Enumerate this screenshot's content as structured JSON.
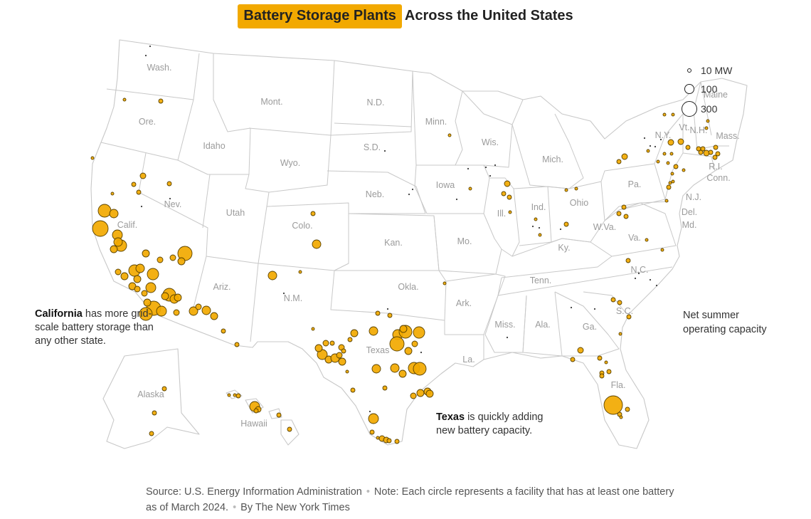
{
  "title": {
    "highlight": "Battery Storage Plants",
    "rest": "Across the United States"
  },
  "colors": {
    "plant_fill": "#f2a900",
    "plant_stroke": "#5a4200",
    "border": "#c8c8c8",
    "label": "#9b9b9b"
  },
  "states": {
    "wa": "Wash.",
    "or": "Ore.",
    "ca": "Calif.",
    "nv": "Nev.",
    "id": "Idaho",
    "mt": "Mont.",
    "wy": "Wyo.",
    "ut": "Utah",
    "az": "Ariz.",
    "co": "Colo.",
    "nm": "N.M.",
    "nd": "N.D.",
    "sd": "S.D.",
    "ne": "Neb.",
    "ks": "Kan.",
    "ok": "Okla.",
    "tx": "Texas",
    "mn": "Minn.",
    "ia": "Iowa",
    "mo": "Mo.",
    "ar": "Ark.",
    "la": "La.",
    "wi": "Wis.",
    "il": "Ill.",
    "mi": "Mich.",
    "in": "Ind.",
    "oh": "Ohio",
    "ky": "Ky.",
    "tn": "Tenn.",
    "ms": "Miss.",
    "al": "Ala.",
    "ga": "Ga.",
    "fl": "Fla.",
    "sc": "S.C.",
    "nc": "N.C.",
    "va": "Va.",
    "wv": "W.Va.",
    "pa": "Pa.",
    "ny": "N.Y.",
    "vt": "Vt.",
    "nh": "N.H.",
    "me": "Maine",
    "ma": "Mass.",
    "ri": "R.I.",
    "ct": "Conn.",
    "nj": "N.J.",
    "de": "Del.",
    "md": "Md.",
    "ak": "Alaska",
    "hi": "Hawaii"
  },
  "annotations": {
    "california_bold": "California",
    "california_rest": " has more grid-scale battery storage than any other state.",
    "texas_bold": "Texas",
    "texas_rest": " is quickly adding new battery capacity."
  },
  "legend": {
    "title": "Net summer operating capacity",
    "items": [
      {
        "label": "10 MW",
        "mw": 10
      },
      {
        "label": "100",
        "mw": 100
      },
      {
        "label": "300",
        "mw": 300
      }
    ]
  },
  "footer": {
    "source": "Source: U.S. Energy Information Administration",
    "note": "Note: Each circle represents a facility that has at least one battery as of March 2024.",
    "credit": "By The New York Times"
  }
}
